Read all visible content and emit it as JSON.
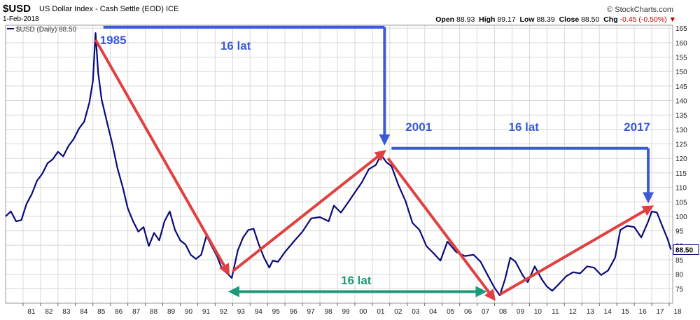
{
  "header": {
    "symbol": "$USD",
    "name": "US Dollar Index - Cash Settle (EOD)",
    "exchange": "ICE",
    "date": "1-Feb-2018",
    "brand": "© StockCharts.com",
    "open_label": "Open",
    "open": "88.93",
    "high_label": "High",
    "high": "89.17",
    "low_label": "Low",
    "low": "88.39",
    "close_label": "Close",
    "close": "88.50",
    "chg_label": "Chg",
    "chg": "-0.45 (-0.50%)"
  },
  "legend": {
    "label": "$USD (Daily) 88.50"
  },
  "colors": {
    "price_line": "#0a0a7a",
    "red_arrow": "#e04040",
    "blue_annotation": "#3a5ad8",
    "teal_annotation": "#1a9a78",
    "grid": "#d8d8d8",
    "last_price_box": "#0a0a7a"
  },
  "chart_data": {
    "type": "line",
    "series": [
      {
        "name": "$USD (Daily)",
        "x": [
          1980.0,
          1980.3,
          1980.6,
          1980.9,
          1981.2,
          1981.5,
          1981.8,
          1982.1,
          1982.4,
          1982.7,
          1983.0,
          1983.3,
          1983.6,
          1983.9,
          1984.2,
          1984.5,
          1984.8,
          1985.0,
          1985.15,
          1985.3,
          1985.5,
          1985.8,
          1986.1,
          1986.4,
          1986.7,
          1987.0,
          1987.3,
          1987.6,
          1987.9,
          1988.2,
          1988.5,
          1988.8,
          1989.1,
          1989.4,
          1989.7,
          1990.0,
          1990.3,
          1990.6,
          1990.9,
          1991.2,
          1991.5,
          1991.8,
          1992.1,
          1992.4,
          1992.7,
          1992.95,
          1993.3,
          1993.6,
          1993.9,
          1994.2,
          1994.5,
          1994.8,
          1995.1,
          1995.3,
          1995.6,
          1996.0,
          1996.5,
          1997.0,
          1997.5,
          1998.0,
          1998.5,
          1998.8,
          1999.2,
          1999.6,
          2000.0,
          2000.4,
          2000.8,
          2001.2,
          2001.5,
          2001.8,
          2002.1,
          2002.5,
          2002.9,
          2003.3,
          2003.7,
          2004.1,
          2004.5,
          2004.9,
          2005.3,
          2005.8,
          2006.3,
          2006.8,
          2007.2,
          2007.6,
          2008.0,
          2008.3,
          2008.6,
          2008.9,
          2009.2,
          2009.6,
          2009.9,
          2010.3,
          2010.7,
          2011.0,
          2011.3,
          2011.7,
          2012.1,
          2012.5,
          2012.9,
          2013.3,
          2013.7,
          2014.1,
          2014.5,
          2014.9,
          2015.2,
          2015.6,
          2016.0,
          2016.4,
          2016.8,
          2017.0,
          2017.3,
          2017.6,
          2017.9,
          2018.1
        ],
        "values": [
          100,
          102,
          98,
          99,
          104,
          108,
          112,
          115,
          118,
          120,
          122,
          121,
          124,
          127,
          130,
          133,
          139,
          147,
          163,
          150,
          140,
          133,
          125,
          117,
          110,
          103,
          98,
          95,
          96,
          90,
          94,
          92,
          98,
          102,
          95,
          92,
          90,
          87,
          85,
          87,
          93,
          90,
          86,
          82,
          80,
          79,
          88,
          93,
          95,
          96,
          90,
          86,
          82,
          85,
          84,
          88,
          91,
          95,
          99,
          100,
          98,
          104,
          101,
          105,
          108,
          112,
          116,
          118,
          121,
          119,
          117,
          111,
          105,
          98,
          95,
          90,
          87,
          85,
          91,
          88,
          86,
          87,
          84,
          80,
          75,
          73,
          78,
          86,
          84,
          80,
          77,
          83,
          78,
          76,
          74,
          77,
          79,
          81,
          80,
          83,
          82,
          80,
          81,
          86,
          95,
          97,
          96,
          93,
          98,
          102,
          101,
          97,
          92,
          88.5
        ],
        "color": "#0a0a7a"
      }
    ],
    "xlim": [
      1980.0,
      2018.2
    ],
    "ylim": [
      70,
      166
    ],
    "x_tick_labels": [
      "81",
      "82",
      "83",
      "84",
      "85",
      "86",
      "87",
      "88",
      "89",
      "90",
      "91",
      "92",
      "93",
      "94",
      "95",
      "96",
      "97",
      "98",
      "99",
      "00",
      "01",
      "02",
      "03",
      "04",
      "05",
      "06",
      "07",
      "08",
      "09",
      "10",
      "11",
      "12",
      "13",
      "14",
      "15",
      "16",
      "17",
      "18"
    ],
    "y_ticks": [
      75,
      80,
      85,
      90,
      95,
      100,
      105,
      110,
      115,
      120,
      125,
      130,
      135,
      140,
      145,
      150,
      155,
      160,
      165
    ],
    "last_value_label": "88.50",
    "grid": true,
    "legend_position": "top-left",
    "annotations": {
      "labels": [
        "1985",
        "16 lat",
        "2001",
        "16 lat",
        "2017",
        "16 lat"
      ]
    }
  }
}
